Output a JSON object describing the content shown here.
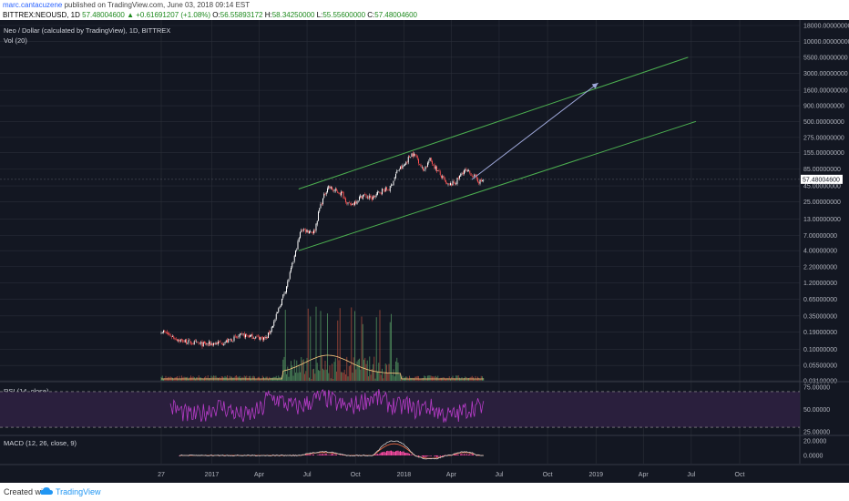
{
  "header": {
    "author": "marc.cantacuzene",
    "published_text": "published on TradingView.com, June 03, 2018 09:14 EST",
    "symbol": "BITTREX:NEOUSD, 1D",
    "change": "57.48004600 ▲ +0.61691207 (+1.08%)",
    "ohlc": {
      "o_label": "O:",
      "o": "56.55893172",
      "h_label": "H:",
      "h": "58.34250000",
      "l_label": "L:",
      "l": "55.55600000",
      "c_label": "C:",
      "c": "57.48004600"
    }
  },
  "footer": {
    "created_with": "Created with",
    "brand": "TradingView"
  },
  "colors": {
    "background": "#131722",
    "grid": "#2a2e39",
    "candle_up": "#ffffff",
    "candle_down": "#ff5252",
    "channel": "#4caf50",
    "arrow": "#9fa8da",
    "rsi": "#b83cc9",
    "rsi_band": "#2a1f3d",
    "macd": "#cfcfcf",
    "signal": "#ff7043",
    "histogram": "#ff4da6",
    "volume": "#ff7043",
    "price_label_bg": "#ffffff"
  },
  "chart_data": [
    {
      "type": "candlestick",
      "title": "Neo / Dollar (calculated by TradingView), 1D, BITTREX",
      "indicator_label": "Vol (20)",
      "y_scale": "log",
      "ylim": [
        0.031,
        18000
      ],
      "y_ticks": [
        {
          "v": 18000,
          "label": "18000.00000000"
        },
        {
          "v": 10000,
          "label": "10000.00000000"
        },
        {
          "v": 5500,
          "label": "5500.00000000"
        },
        {
          "v": 3000,
          "label": "3000.00000000"
        },
        {
          "v": 1600,
          "label": "1600.00000000"
        },
        {
          "v": 900,
          "label": "900.00000000"
        },
        {
          "v": 500,
          "label": "500.00000000"
        },
        {
          "v": 275,
          "label": "275.00000000"
        },
        {
          "v": 155,
          "label": "155.00000000"
        },
        {
          "v": 85,
          "label": "85.00000000"
        },
        {
          "v": 45,
          "label": "45.00000000"
        },
        {
          "v": 25,
          "label": "25.00000000"
        },
        {
          "v": 13,
          "label": "13.00000000"
        },
        {
          "v": 7,
          "label": "7.00000000"
        },
        {
          "v": 4,
          "label": "4.00000000"
        },
        {
          "v": 2.2,
          "label": "2.20000000"
        },
        {
          "v": 1.2,
          "label": "1.20000000"
        },
        {
          "v": 0.65,
          "label": "0.65000000"
        },
        {
          "v": 0.35,
          "label": "0.35000000"
        },
        {
          "v": 0.19,
          "label": "0.19000000"
        },
        {
          "v": 0.1,
          "label": "0.10000000"
        },
        {
          "v": 0.055,
          "label": "0.05500000"
        },
        {
          "v": 0.031,
          "label": "0.03100000"
        }
      ],
      "last_price": {
        "value": 57.48,
        "label": "57.48004600"
      },
      "price_path": [
        [
          "2016-09-27",
          0.2
        ],
        [
          "2016-11-01",
          0.14
        ],
        [
          "2016-12-15",
          0.12
        ],
        [
          "2017-01-25",
          0.13
        ],
        [
          "2017-03-01",
          0.17
        ],
        [
          "2017-04-15",
          0.15
        ],
        [
          "2017-05-01",
          0.3
        ],
        [
          "2017-05-25",
          1.2
        ],
        [
          "2017-06-10",
          4.0
        ],
        [
          "2017-06-20",
          9.0
        ],
        [
          "2017-07-01",
          8.5
        ],
        [
          "2017-07-15",
          8.0
        ],
        [
          "2017-07-25",
          20
        ],
        [
          "2017-08-10",
          45
        ],
        [
          "2017-08-20",
          38
        ],
        [
          "2017-09-05",
          34
        ],
        [
          "2017-09-20",
          21
        ],
        [
          "2017-10-15",
          32
        ],
        [
          "2017-11-01",
          28
        ],
        [
          "2017-11-20",
          38
        ],
        [
          "2017-12-05",
          40
        ],
        [
          "2017-12-20",
          80
        ],
        [
          "2018-01-01",
          95
        ],
        [
          "2018-01-15",
          150
        ],
        [
          "2018-01-25",
          135
        ],
        [
          "2018-02-06",
          80
        ],
        [
          "2018-02-20",
          120
        ],
        [
          "2018-03-10",
          70
        ],
        [
          "2018-03-25",
          45
        ],
        [
          "2018-04-10",
          52
        ],
        [
          "2018-04-25",
          80
        ],
        [
          "2018-05-10",
          70
        ],
        [
          "2018-05-25",
          52
        ],
        [
          "2018-06-03",
          57.48
        ]
      ],
      "channel_upper": [
        [
          "2017-06-15",
          40
        ],
        [
          "2019-06-25",
          5500
        ]
      ],
      "channel_lower": [
        [
          "2017-06-15",
          4.0
        ],
        [
          "2019-07-10",
          500
        ]
      ],
      "projection_arrow": [
        [
          "2018-05-10",
          57
        ],
        [
          "2019-01-05",
          2100
        ]
      ]
    },
    {
      "type": "line",
      "title": "RSI (14, close)",
      "ylim": [
        25,
        75
      ],
      "band": [
        30,
        70
      ],
      "y_ticks": [
        {
          "v": 75,
          "label": "75.00000"
        },
        {
          "v": 50,
          "label": "50.00000"
        },
        {
          "v": 25,
          "label": "25.00000"
        }
      ]
    },
    {
      "type": "line",
      "title": "MACD (12, 26, close, 9)",
      "y_ticks": [
        {
          "v": 20,
          "label": "20.0000"
        },
        {
          "v": 0,
          "label": "0.0000"
        }
      ]
    }
  ],
  "x_axis": [
    {
      "d": "2016-09-27",
      "label": "27"
    },
    {
      "d": "2017-01-01",
      "label": "2017"
    },
    {
      "d": "2017-04-01",
      "label": "Apr"
    },
    {
      "d": "2017-07-01",
      "label": "Jul"
    },
    {
      "d": "2017-10-01",
      "label": "Oct"
    },
    {
      "d": "2018-01-01",
      "label": "2018"
    },
    {
      "d": "2018-04-01",
      "label": "Apr"
    },
    {
      "d": "2018-07-01",
      "label": "Jul"
    },
    {
      "d": "2018-10-01",
      "label": "Oct"
    },
    {
      "d": "2019-01-01",
      "label": "2019"
    },
    {
      "d": "2019-04-01",
      "label": "Apr"
    },
    {
      "d": "2019-07-01",
      "label": "Jul"
    },
    {
      "d": "2019-10-01",
      "label": "Oct"
    }
  ]
}
